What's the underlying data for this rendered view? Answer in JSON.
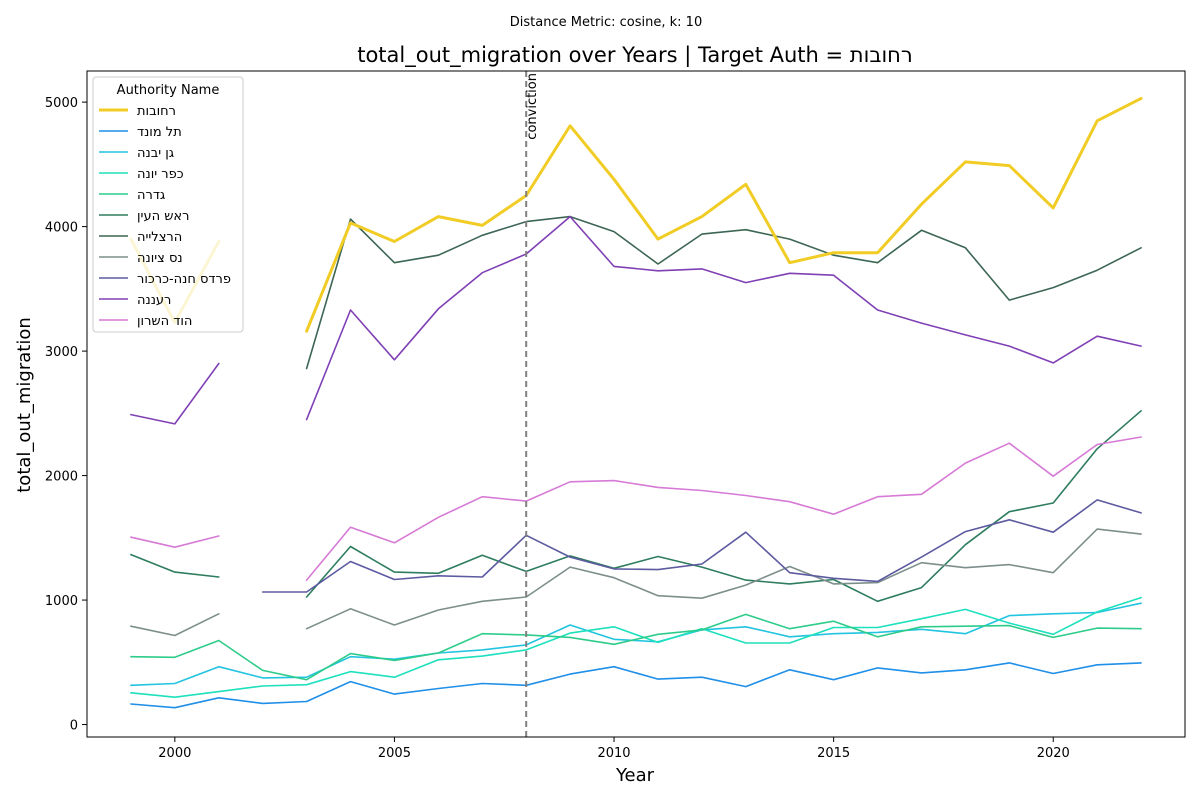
{
  "chart_data": {
    "type": "line",
    "suptitle": "Distance Metric: cosine, k: 10",
    "title": "total_out_migration over Years | Target Auth = רחובות",
    "xlabel": "Year",
    "ylabel": "total_out_migration",
    "xlim": [
      1998,
      2023
    ],
    "ylim": [
      -100,
      5250
    ],
    "xticks": [
      2000,
      2005,
      2010,
      2015,
      2020
    ],
    "yticks": [
      0,
      1000,
      2000,
      3000,
      4000,
      5000
    ],
    "grid": false,
    "legend": {
      "title": "Authority Name",
      "placement": "top-left"
    },
    "annotation": {
      "x": 2008,
      "label": "conviction",
      "color": "#808080",
      "style": "dashed"
    },
    "x": [
      1999,
      2000,
      2001,
      2002,
      2003,
      2004,
      2005,
      2006,
      2007,
      2008,
      2009,
      2010,
      2011,
      2012,
      2013,
      2014,
      2015,
      2016,
      2017,
      2018,
      2019,
      2020,
      2021,
      2022
    ],
    "series": [
      {
        "name": "רחובות",
        "color": "#f1cc25",
        "width": 3,
        "values": [
          3900,
          3230,
          3880,
          null,
          3160,
          4030,
          3880,
          4080,
          4010,
          4250,
          4810,
          4380,
          3900,
          4080,
          4340,
          3710,
          3790,
          3790,
          4180,
          4520,
          4490,
          4150,
          4850,
          5030
        ]
      },
      {
        "name": "תל מונד",
        "color": "#1f8fe8",
        "width": 1.6,
        "values": [
          165,
          135,
          215,
          170,
          185,
          345,
          245,
          290,
          330,
          315,
          405,
          465,
          365,
          380,
          305,
          440,
          360,
          455,
          415,
          440,
          495,
          410,
          480,
          495
        ]
      },
      {
        "name": "גן יבנה",
        "color": "#22c4e0",
        "width": 1.6,
        "values": [
          315,
          330,
          465,
          375,
          380,
          545,
          525,
          575,
          600,
          640,
          800,
          685,
          665,
          760,
          785,
          705,
          730,
          740,
          765,
          730,
          875,
          890,
          900,
          975
        ]
      },
      {
        "name": "כפר יונה",
        "color": "#1de0bd",
        "width": 1.6,
        "values": [
          255,
          220,
          265,
          310,
          320,
          425,
          380,
          520,
          550,
          600,
          735,
          785,
          660,
          770,
          655,
          655,
          780,
          780,
          850,
          925,
          815,
          725,
          905,
          1020
        ]
      },
      {
        "name": "גדרה",
        "color": "#2ecc8a",
        "width": 1.6,
        "values": [
          545,
          540,
          675,
          435,
          360,
          570,
          515,
          575,
          730,
          720,
          700,
          645,
          725,
          760,
          885,
          770,
          830,
          705,
          785,
          790,
          795,
          700,
          775,
          770
        ]
      },
      {
        "name": "ראש העין",
        "color": "#2e7d5e",
        "width": 1.6,
        "values": [
          1365,
          1225,
          1185,
          null,
          1025,
          1430,
          1225,
          1215,
          1360,
          1230,
          1355,
          1255,
          1350,
          1265,
          1160,
          1130,
          1165,
          990,
          1100,
          1445,
          1710,
          1780,
          2215,
          2520
        ]
      },
      {
        "name": "הרצלייה",
        "color": "#3d6654",
        "width": 1.6,
        "values": [
          3900,
          null,
          3870,
          null,
          2860,
          4060,
          3710,
          3770,
          3930,
          4040,
          4080,
          3960,
          3700,
          3940,
          3975,
          3900,
          3770,
          3710,
          3970,
          3830,
          3410,
          3510,
          3650,
          3830
        ]
      },
      {
        "name": "נס ציונה",
        "color": "#7d8f8c",
        "width": 1.6,
        "values": [
          790,
          715,
          890,
          null,
          770,
          930,
          800,
          920,
          990,
          1025,
          1265,
          1180,
          1035,
          1015,
          1120,
          1270,
          1130,
          1140,
          1300,
          1260,
          1285,
          1220,
          1570,
          1530
        ]
      },
      {
        "name": "פרדס חנה-כרכור",
        "color": "#5d5aa0",
        "width": 1.6,
        "values": [
          null,
          null,
          null,
          1065,
          1065,
          1310,
          1165,
          1195,
          1185,
          1520,
          1345,
          1250,
          1245,
          1290,
          1545,
          1220,
          1175,
          1150,
          1345,
          1550,
          1645,
          1545,
          1805,
          1700
        ]
      },
      {
        "name": "רעננה",
        "color": "#8040b5",
        "width": 1.6,
        "values": [
          2490,
          2415,
          2900,
          null,
          2450,
          3330,
          2930,
          3340,
          3630,
          3780,
          4080,
          3680,
          3645,
          3660,
          3550,
          3625,
          3610,
          3330,
          3225,
          3130,
          3040,
          2905,
          3120,
          3040
        ]
      },
      {
        "name": "הוד השרון",
        "color": "#d67ad6",
        "width": 1.6,
        "values": [
          1505,
          1425,
          1515,
          null,
          1160,
          1585,
          1460,
          1665,
          1830,
          1795,
          1950,
          1960,
          1905,
          1880,
          1840,
          1790,
          1690,
          1830,
          1850,
          2100,
          2260,
          1995,
          2250,
          2310
        ]
      }
    ]
  }
}
